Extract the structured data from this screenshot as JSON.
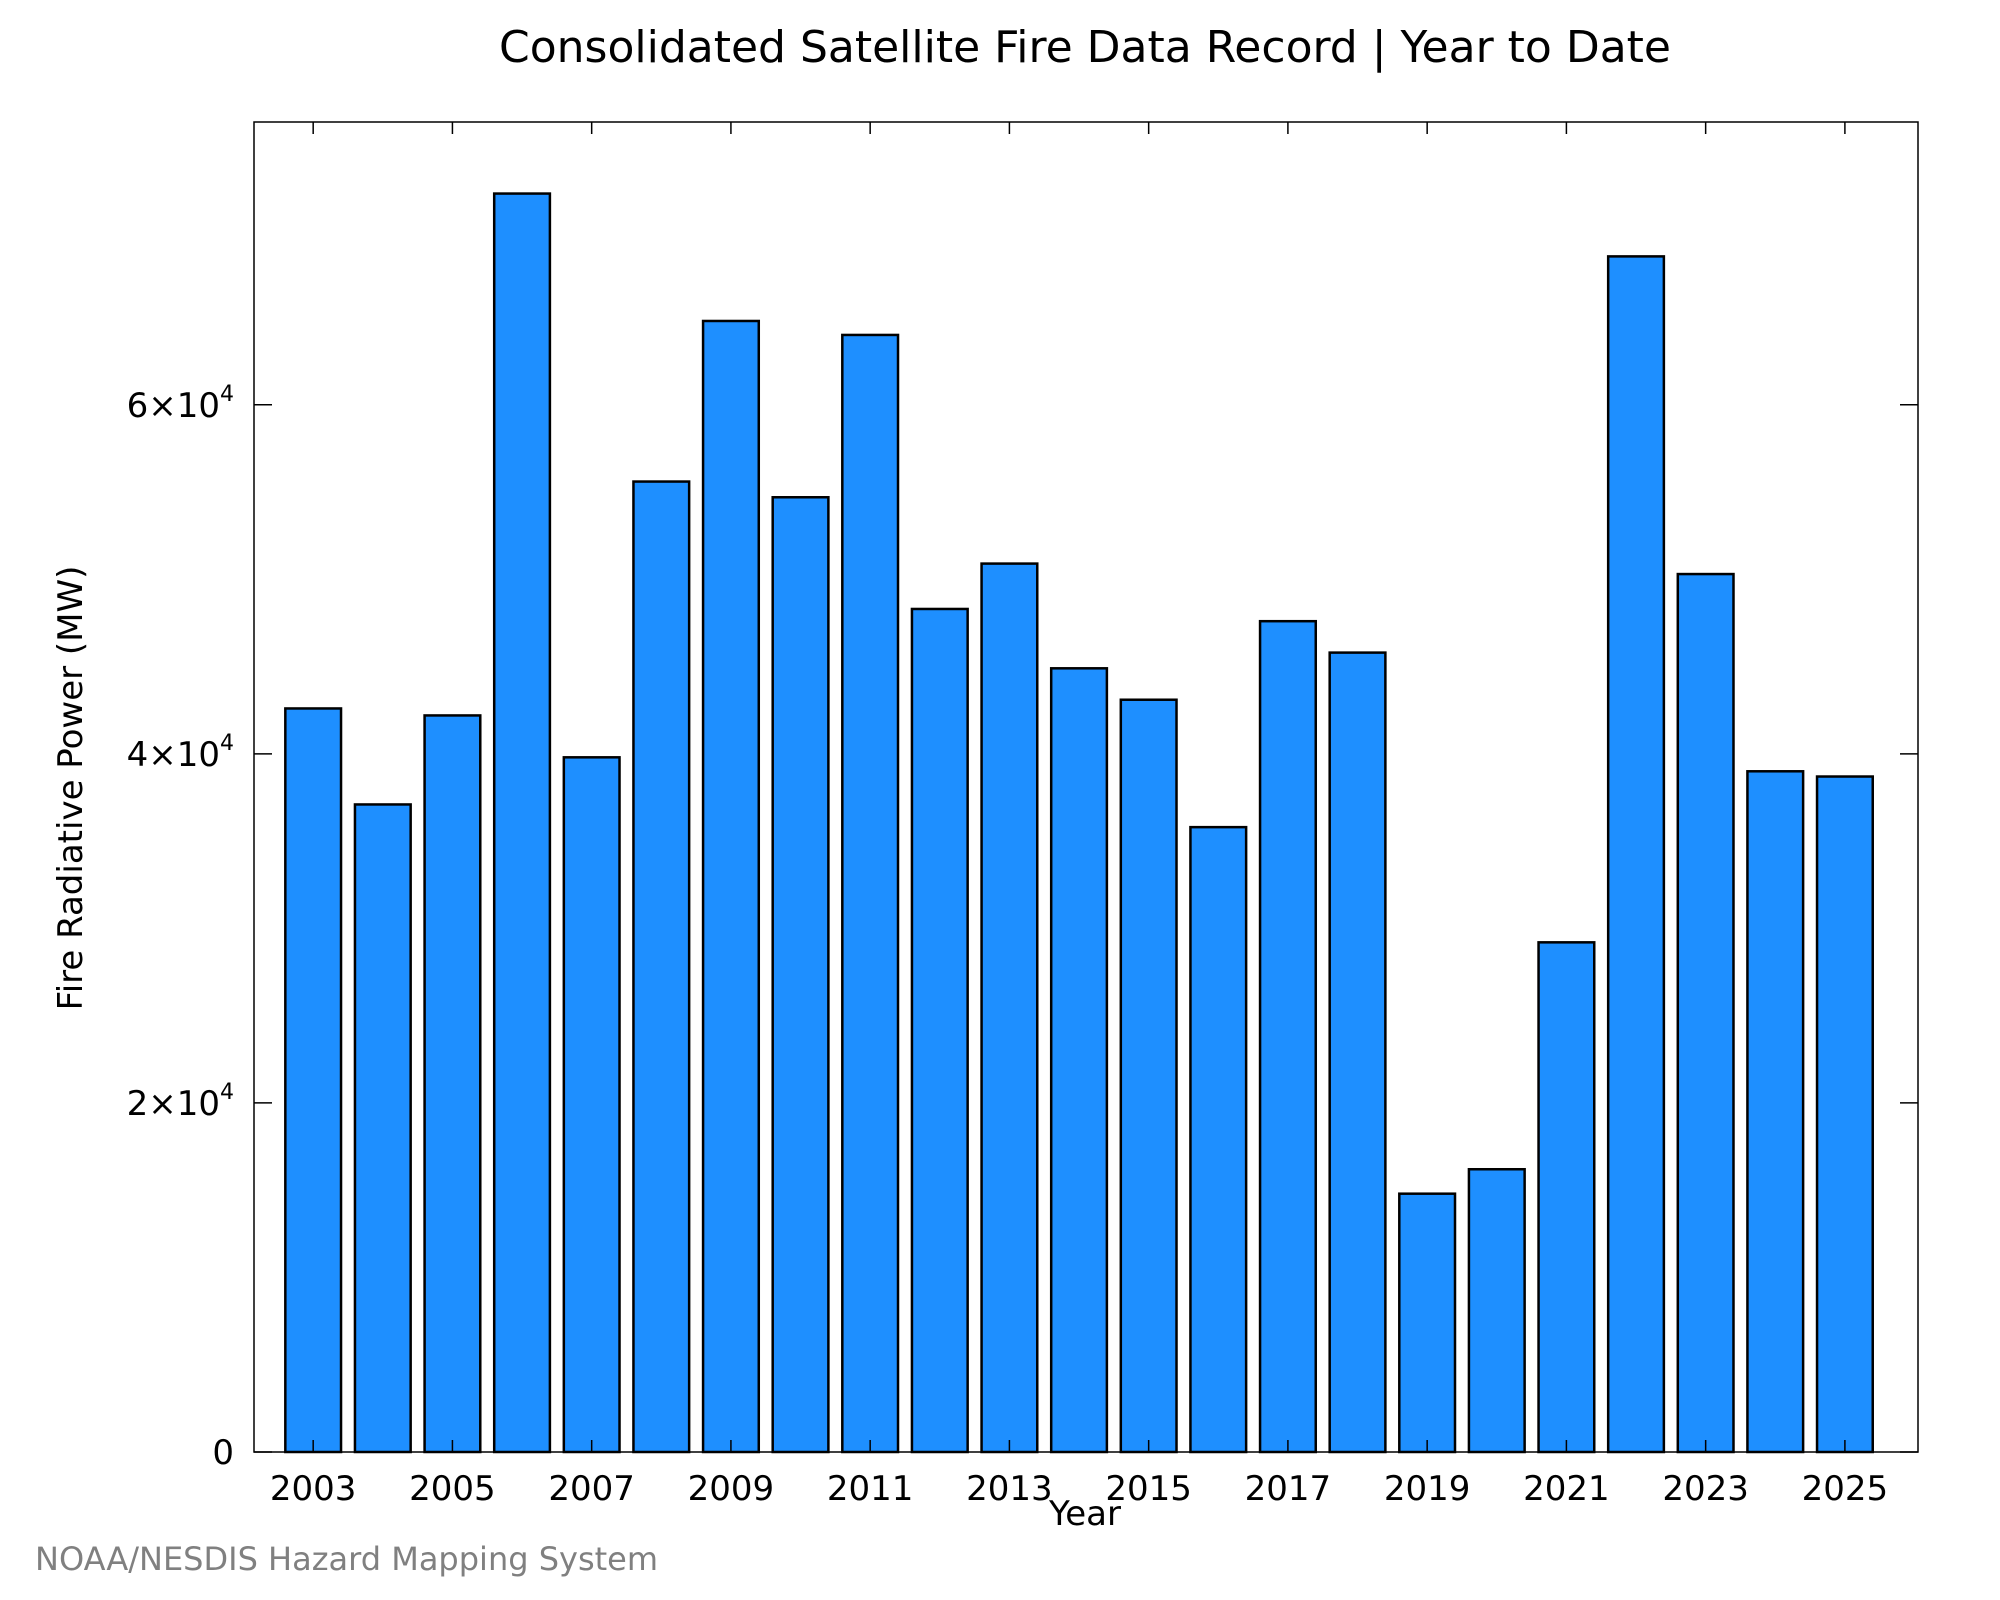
{
  "chart_data": {
    "type": "bar",
    "title": "Consolidated Satellite Fire Data Record | Year to Date",
    "xlabel": "Year",
    "ylabel": "Fire Radiative Power (MW)",
    "categories": [
      "2003",
      "2004",
      "2005",
      "2006",
      "2007",
      "2008",
      "2009",
      "2010",
      "2011",
      "2012",
      "2013",
      "2014",
      "2015",
      "2016",
      "2017",
      "2018",
      "2019",
      "2020",
      "2021",
      "2022",
      "2023",
      "2024",
      "2025"
    ],
    "values": [
      42600,
      37100,
      42200,
      72100,
      39800,
      55600,
      64800,
      54700,
      64000,
      48300,
      50900,
      44900,
      43100,
      35800,
      47600,
      45800,
      14800,
      16200,
      29200,
      68500,
      50300,
      39000,
      38700
    ],
    "x_tick_labels": [
      "2003",
      "2005",
      "2007",
      "2009",
      "2011",
      "2013",
      "2015",
      "2017",
      "2019",
      "2021",
      "2023",
      "2025"
    ],
    "y_ticks": [
      {
        "value": 0,
        "mantissa": "0",
        "exponent": ""
      },
      {
        "value": 20000,
        "mantissa": "2×10",
        "exponent": "4"
      },
      {
        "value": 40000,
        "mantissa": "4×10",
        "exponent": "4"
      },
      {
        "value": 60000,
        "mantissa": "6×10",
        "exponent": "4"
      }
    ],
    "xlim": [
      2002.15,
      2026.05
    ],
    "ylim": [
      0,
      76200
    ],
    "bar_color": "#1e8fff",
    "bar_edge_color": "#000000",
    "grid": false,
    "legend": "none"
  },
  "credit": "NOAA/NESDIS Hazard Mapping System"
}
